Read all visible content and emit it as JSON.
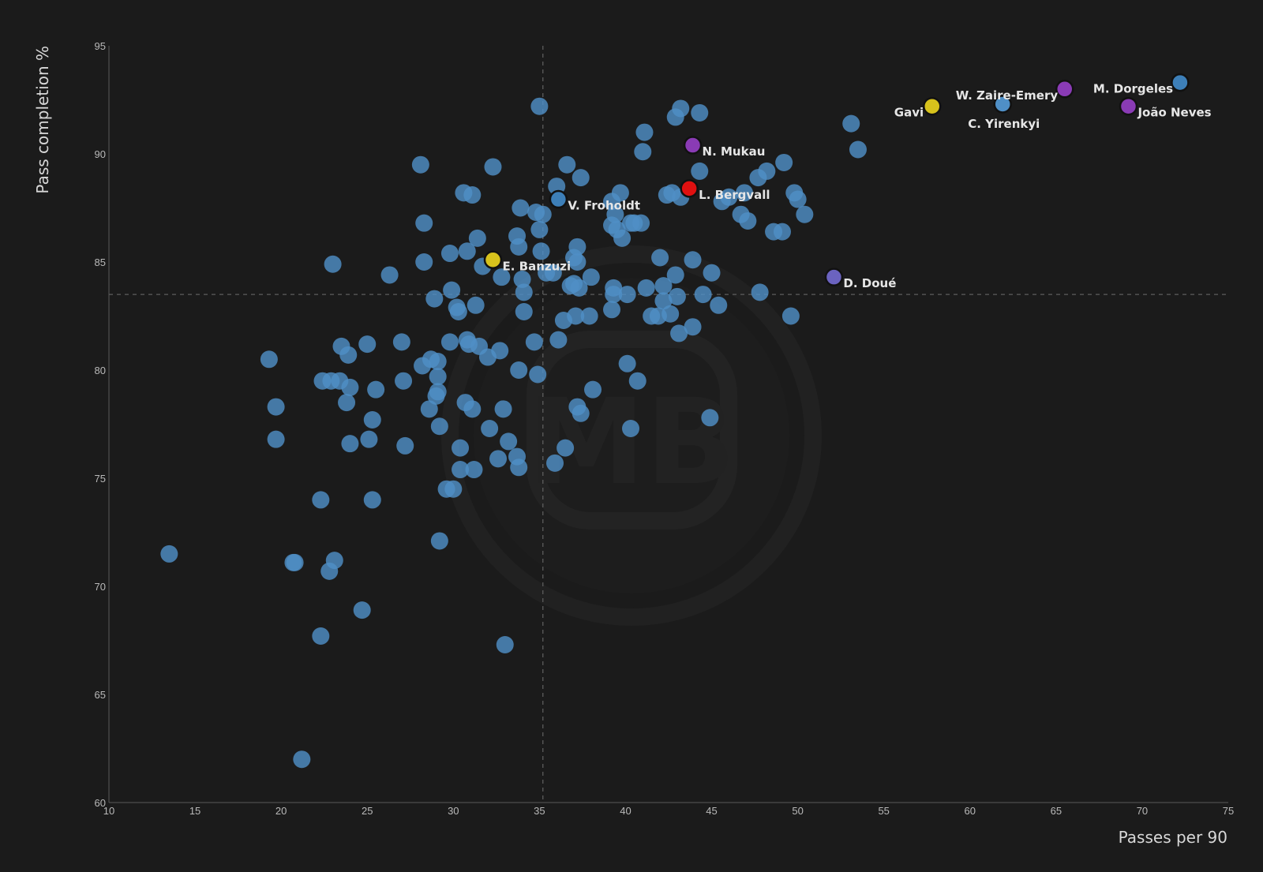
{
  "chart_data": {
    "type": "scatter",
    "xlabel": "Passes per 90",
    "ylabel": "Pass completion %",
    "xlim": [
      10,
      75
    ],
    "ylim": [
      60,
      95
    ],
    "xticks": [
      10,
      15,
      20,
      25,
      30,
      35,
      40,
      45,
      50,
      55,
      60,
      65,
      70,
      75
    ],
    "yticks": [
      60,
      65,
      70,
      75,
      80,
      85,
      90,
      95
    ],
    "grid": false,
    "reference_lines": {
      "x": 35.2,
      "y": 83.5
    },
    "colors": {
      "default": "#4f8fc6",
      "highlight_purple": "#8a3bb5",
      "highlight_yellow": "#d7c21c",
      "highlight_red": "#e01010",
      "highlight_blue": "#3d7fb8"
    },
    "watermark": "MB",
    "points": [
      [
        13.5,
        71.5
      ],
      [
        19.3,
        80.5
      ],
      [
        19.7,
        78.3
      ],
      [
        19.7,
        76.8
      ],
      [
        20.7,
        71.1
      ],
      [
        20.8,
        71.1
      ],
      [
        21.2,
        62.0
      ],
      [
        22.3,
        74.0
      ],
      [
        22.3,
        67.7
      ],
      [
        22.4,
        79.5
      ],
      [
        22.8,
        70.7
      ],
      [
        22.9,
        79.5
      ],
      [
        23.0,
        84.9
      ],
      [
        23.1,
        71.2
      ],
      [
        23.4,
        79.5
      ],
      [
        23.5,
        81.1
      ],
      [
        23.8,
        78.5
      ],
      [
        23.9,
        80.7
      ],
      [
        24.0,
        76.6
      ],
      [
        24.0,
        79.2
      ],
      [
        24.7,
        68.9
      ],
      [
        25.0,
        81.2
      ],
      [
        25.1,
        76.8
      ],
      [
        25.3,
        74.0
      ],
      [
        25.3,
        77.7
      ],
      [
        25.5,
        79.1
      ],
      [
        26.3,
        84.4
      ],
      [
        27.0,
        81.3
      ],
      [
        27.1,
        79.5
      ],
      [
        27.2,
        76.5
      ],
      [
        28.1,
        89.5
      ],
      [
        28.2,
        80.2
      ],
      [
        28.3,
        85.0
      ],
      [
        28.3,
        86.8
      ],
      [
        28.6,
        78.2
      ],
      [
        28.7,
        80.5
      ],
      [
        28.9,
        83.3
      ],
      [
        29.0,
        78.8
      ],
      [
        29.1,
        79.0
      ],
      [
        29.1,
        79.7
      ],
      [
        29.1,
        80.4
      ],
      [
        29.2,
        77.4
      ],
      [
        29.2,
        72.1
      ],
      [
        29.6,
        74.5
      ],
      [
        29.8,
        85.4
      ],
      [
        29.8,
        81.3
      ],
      [
        29.9,
        83.7
      ],
      [
        30.0,
        74.5
      ],
      [
        30.2,
        82.9
      ],
      [
        30.3,
        82.7
      ],
      [
        30.4,
        76.4
      ],
      [
        30.4,
        75.4
      ],
      [
        30.6,
        88.2
      ],
      [
        30.7,
        78.5
      ],
      [
        30.8,
        81.4
      ],
      [
        30.8,
        85.5
      ],
      [
        30.9,
        81.2
      ],
      [
        31.1,
        78.2
      ],
      [
        31.1,
        88.1
      ],
      [
        31.2,
        75.4
      ],
      [
        31.3,
        83.0
      ],
      [
        31.4,
        86.1
      ],
      [
        31.5,
        81.1
      ],
      [
        31.7,
        84.8
      ],
      [
        32.0,
        80.6
      ],
      [
        32.1,
        77.3
      ],
      [
        32.3,
        89.4
      ],
      [
        32.6,
        75.9
      ],
      [
        32.7,
        80.9
      ],
      [
        32.8,
        84.3
      ],
      [
        32.9,
        78.2
      ],
      [
        33.0,
        67.3
      ],
      [
        33.2,
        76.7
      ],
      [
        33.7,
        86.2
      ],
      [
        33.7,
        76.0
      ],
      [
        33.8,
        80.0
      ],
      [
        33.8,
        85.7
      ],
      [
        33.8,
        75.5
      ],
      [
        33.9,
        87.5
      ],
      [
        34.0,
        84.2
      ],
      [
        34.1,
        83.6
      ],
      [
        34.1,
        82.7
      ],
      [
        34.7,
        81.3
      ],
      [
        34.8,
        87.3
      ],
      [
        34.9,
        79.8
      ],
      [
        35.0,
        92.2
      ],
      [
        35.0,
        86.5
      ],
      [
        35.1,
        85.5
      ],
      [
        35.2,
        87.2
      ],
      [
        35.4,
        84.5
      ],
      [
        35.8,
        84.5
      ],
      [
        35.9,
        75.7
      ],
      [
        36.0,
        88.5
      ],
      [
        36.1,
        81.4
      ],
      [
        36.4,
        82.3
      ],
      [
        36.5,
        76.4
      ],
      [
        36.6,
        89.5
      ],
      [
        36.8,
        83.9
      ],
      [
        37.0,
        85.2
      ],
      [
        37.0,
        84.0
      ],
      [
        37.1,
        82.5
      ],
      [
        37.2,
        78.3
      ],
      [
        37.2,
        85.7
      ],
      [
        37.2,
        85.0
      ],
      [
        37.3,
        83.8
      ],
      [
        37.4,
        78.0
      ],
      [
        37.4,
        88.9
      ],
      [
        37.9,
        82.5
      ],
      [
        38.0,
        84.3
      ],
      [
        38.1,
        79.1
      ],
      [
        39.2,
        87.8
      ],
      [
        39.2,
        82.8
      ],
      [
        39.2,
        86.7
      ],
      [
        39.3,
        83.5
      ],
      [
        39.3,
        83.8
      ],
      [
        39.4,
        87.2
      ],
      [
        39.5,
        86.5
      ],
      [
        39.7,
        88.2
      ],
      [
        39.8,
        86.1
      ],
      [
        40.1,
        83.5
      ],
      [
        40.1,
        80.3
      ],
      [
        40.3,
        77.3
      ],
      [
        40.3,
        86.8
      ],
      [
        40.5,
        86.8
      ],
      [
        40.7,
        79.5
      ],
      [
        40.9,
        86.8
      ],
      [
        41.0,
        90.1
      ],
      [
        41.1,
        91.0
      ],
      [
        41.2,
        83.8
      ],
      [
        41.5,
        82.5
      ],
      [
        41.9,
        82.5
      ],
      [
        42.0,
        85.2
      ],
      [
        42.2,
        83.2
      ],
      [
        42.2,
        83.9
      ],
      [
        42.4,
        88.1
      ],
      [
        42.6,
        82.6
      ],
      [
        42.7,
        88.2
      ],
      [
        42.9,
        84.4
      ],
      [
        42.9,
        91.7
      ],
      [
        43.0,
        83.4
      ],
      [
        43.1,
        81.7
      ],
      [
        43.2,
        92.1
      ],
      [
        43.2,
        88.0
      ],
      [
        43.9,
        85.1
      ],
      [
        43.9,
        82.0
      ],
      [
        44.3,
        89.2
      ],
      [
        44.3,
        91.9
      ],
      [
        44.5,
        83.5
      ],
      [
        44.9,
        77.8
      ],
      [
        45.0,
        84.5
      ],
      [
        45.4,
        83.0
      ],
      [
        45.6,
        87.8
      ],
      [
        46.0,
        88.0
      ],
      [
        46.7,
        87.2
      ],
      [
        46.9,
        88.2
      ],
      [
        47.1,
        86.9
      ],
      [
        47.7,
        88.9
      ],
      [
        47.8,
        83.6
      ],
      [
        48.2,
        89.2
      ],
      [
        48.6,
        86.4
      ],
      [
        49.1,
        86.4
      ],
      [
        49.2,
        89.6
      ],
      [
        49.6,
        82.5
      ],
      [
        49.8,
        88.2
      ],
      [
        50.0,
        87.9
      ],
      [
        50.4,
        87.2
      ],
      [
        53.1,
        91.4
      ],
      [
        53.5,
        90.2
      ]
    ],
    "highlighted": [
      {
        "name": "M. Dorgeles",
        "x": 72.2,
        "y": 93.3,
        "color": "#3d7fb8",
        "label_dx": -110,
        "label_dy": 13
      },
      {
        "name": "W. Zaire-Emery",
        "x": 65.5,
        "y": 93.0,
        "color": "#8a3bb5",
        "label_dx": -138,
        "label_dy": 13
      },
      {
        "name": "João Neves",
        "x": 69.2,
        "y": 92.2,
        "color": "#8a3bb5",
        "label_dx": 12,
        "label_dy": 13
      },
      {
        "name": "Gavi",
        "x": 57.8,
        "y": 92.2,
        "color": "#d7c21c",
        "label_dx": -48,
        "label_dy": 13
      },
      {
        "name": "C. Yirenkyi",
        "x": 61.9,
        "y": 92.3,
        "color": "#4f8fc6",
        "label_dx": -44,
        "label_dy": 30
      },
      {
        "name": "N. Mukau",
        "x": 43.9,
        "y": 90.4,
        "color": "#8a3bb5",
        "label_dx": 12,
        "label_dy": 13
      },
      {
        "name": "L. Bergvall",
        "x": 43.7,
        "y": 88.4,
        "color": "#e01010",
        "label_dx": 12,
        "label_dy": 13
      },
      {
        "name": "V. Froholdt",
        "x": 36.1,
        "y": 87.9,
        "color": "#3d7fb8",
        "label_dx": 12,
        "label_dy": 13
      },
      {
        "name": "E. Banzuzi",
        "x": 32.3,
        "y": 85.1,
        "color": "#d7c21c",
        "label_dx": 12,
        "label_dy": 13
      },
      {
        "name": "D. Doué",
        "x": 52.1,
        "y": 84.3,
        "color": "#6b63c0",
        "label_dx": 12,
        "label_dy": 13
      }
    ]
  }
}
